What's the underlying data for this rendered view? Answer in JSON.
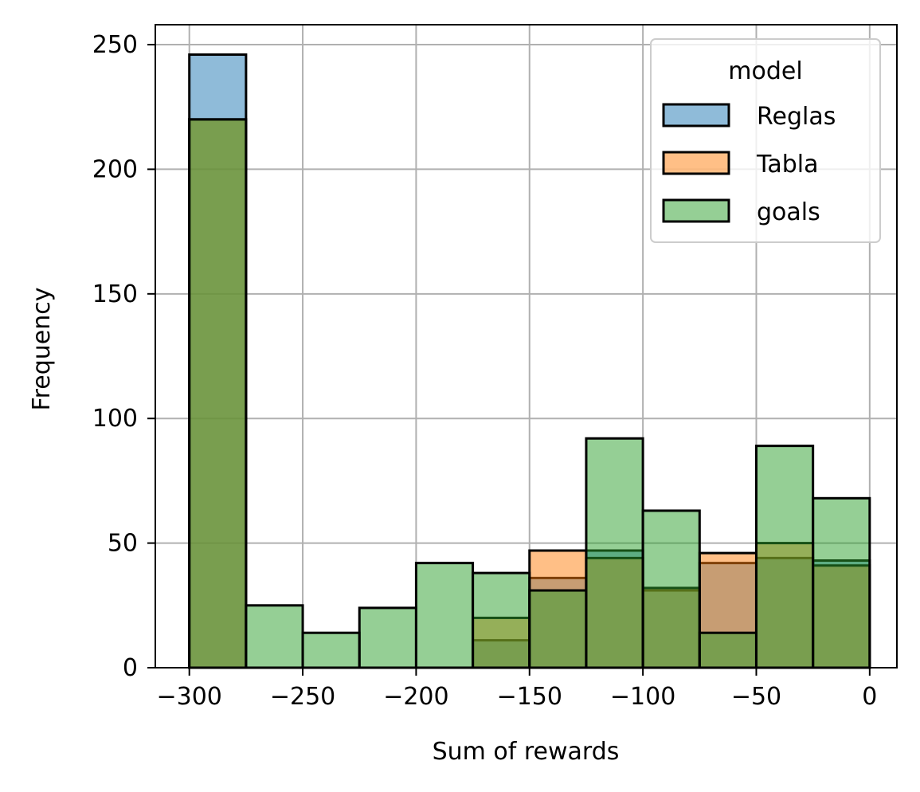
{
  "chart_data": {
    "type": "bar",
    "xlabel": "Sum of rewards",
    "ylabel": "Frequency",
    "xlim": [
      -315,
      12
    ],
    "ylim": [
      0,
      258
    ],
    "grid": true,
    "legend": {
      "title": "model",
      "placement": "top-right"
    },
    "xticks": [
      -300,
      -250,
      -200,
      -150,
      -100,
      -50,
      0
    ],
    "xtick_labels": [
      "−300",
      "−250",
      "−200",
      "−150",
      "−100",
      "−50",
      "0"
    ],
    "yticks": [
      0,
      50,
      100,
      150,
      200,
      250
    ],
    "ytick_labels": [
      "0",
      "50",
      "100",
      "150",
      "200",
      "250"
    ],
    "bin_edges": [
      -300,
      -275,
      -250,
      -225,
      -200,
      -175,
      -150,
      -125,
      -100,
      -75,
      -50,
      -25,
      0
    ],
    "series": [
      {
        "name": "Reglas",
        "color": "#1f77b4",
        "values": [
          246,
          0,
          0,
          0,
          0,
          11,
          36,
          47,
          31,
          42,
          44,
          43
        ]
      },
      {
        "name": "Tabla",
        "color": "#ff7f0e",
        "values": [
          220,
          0,
          0,
          0,
          0,
          20,
          47,
          44,
          32,
          46,
          50,
          41
        ]
      },
      {
        "name": "goals",
        "color": "#2ca02c",
        "values": [
          220,
          25,
          14,
          24,
          42,
          38,
          31,
          92,
          63,
          14,
          89,
          68
        ]
      }
    ]
  }
}
